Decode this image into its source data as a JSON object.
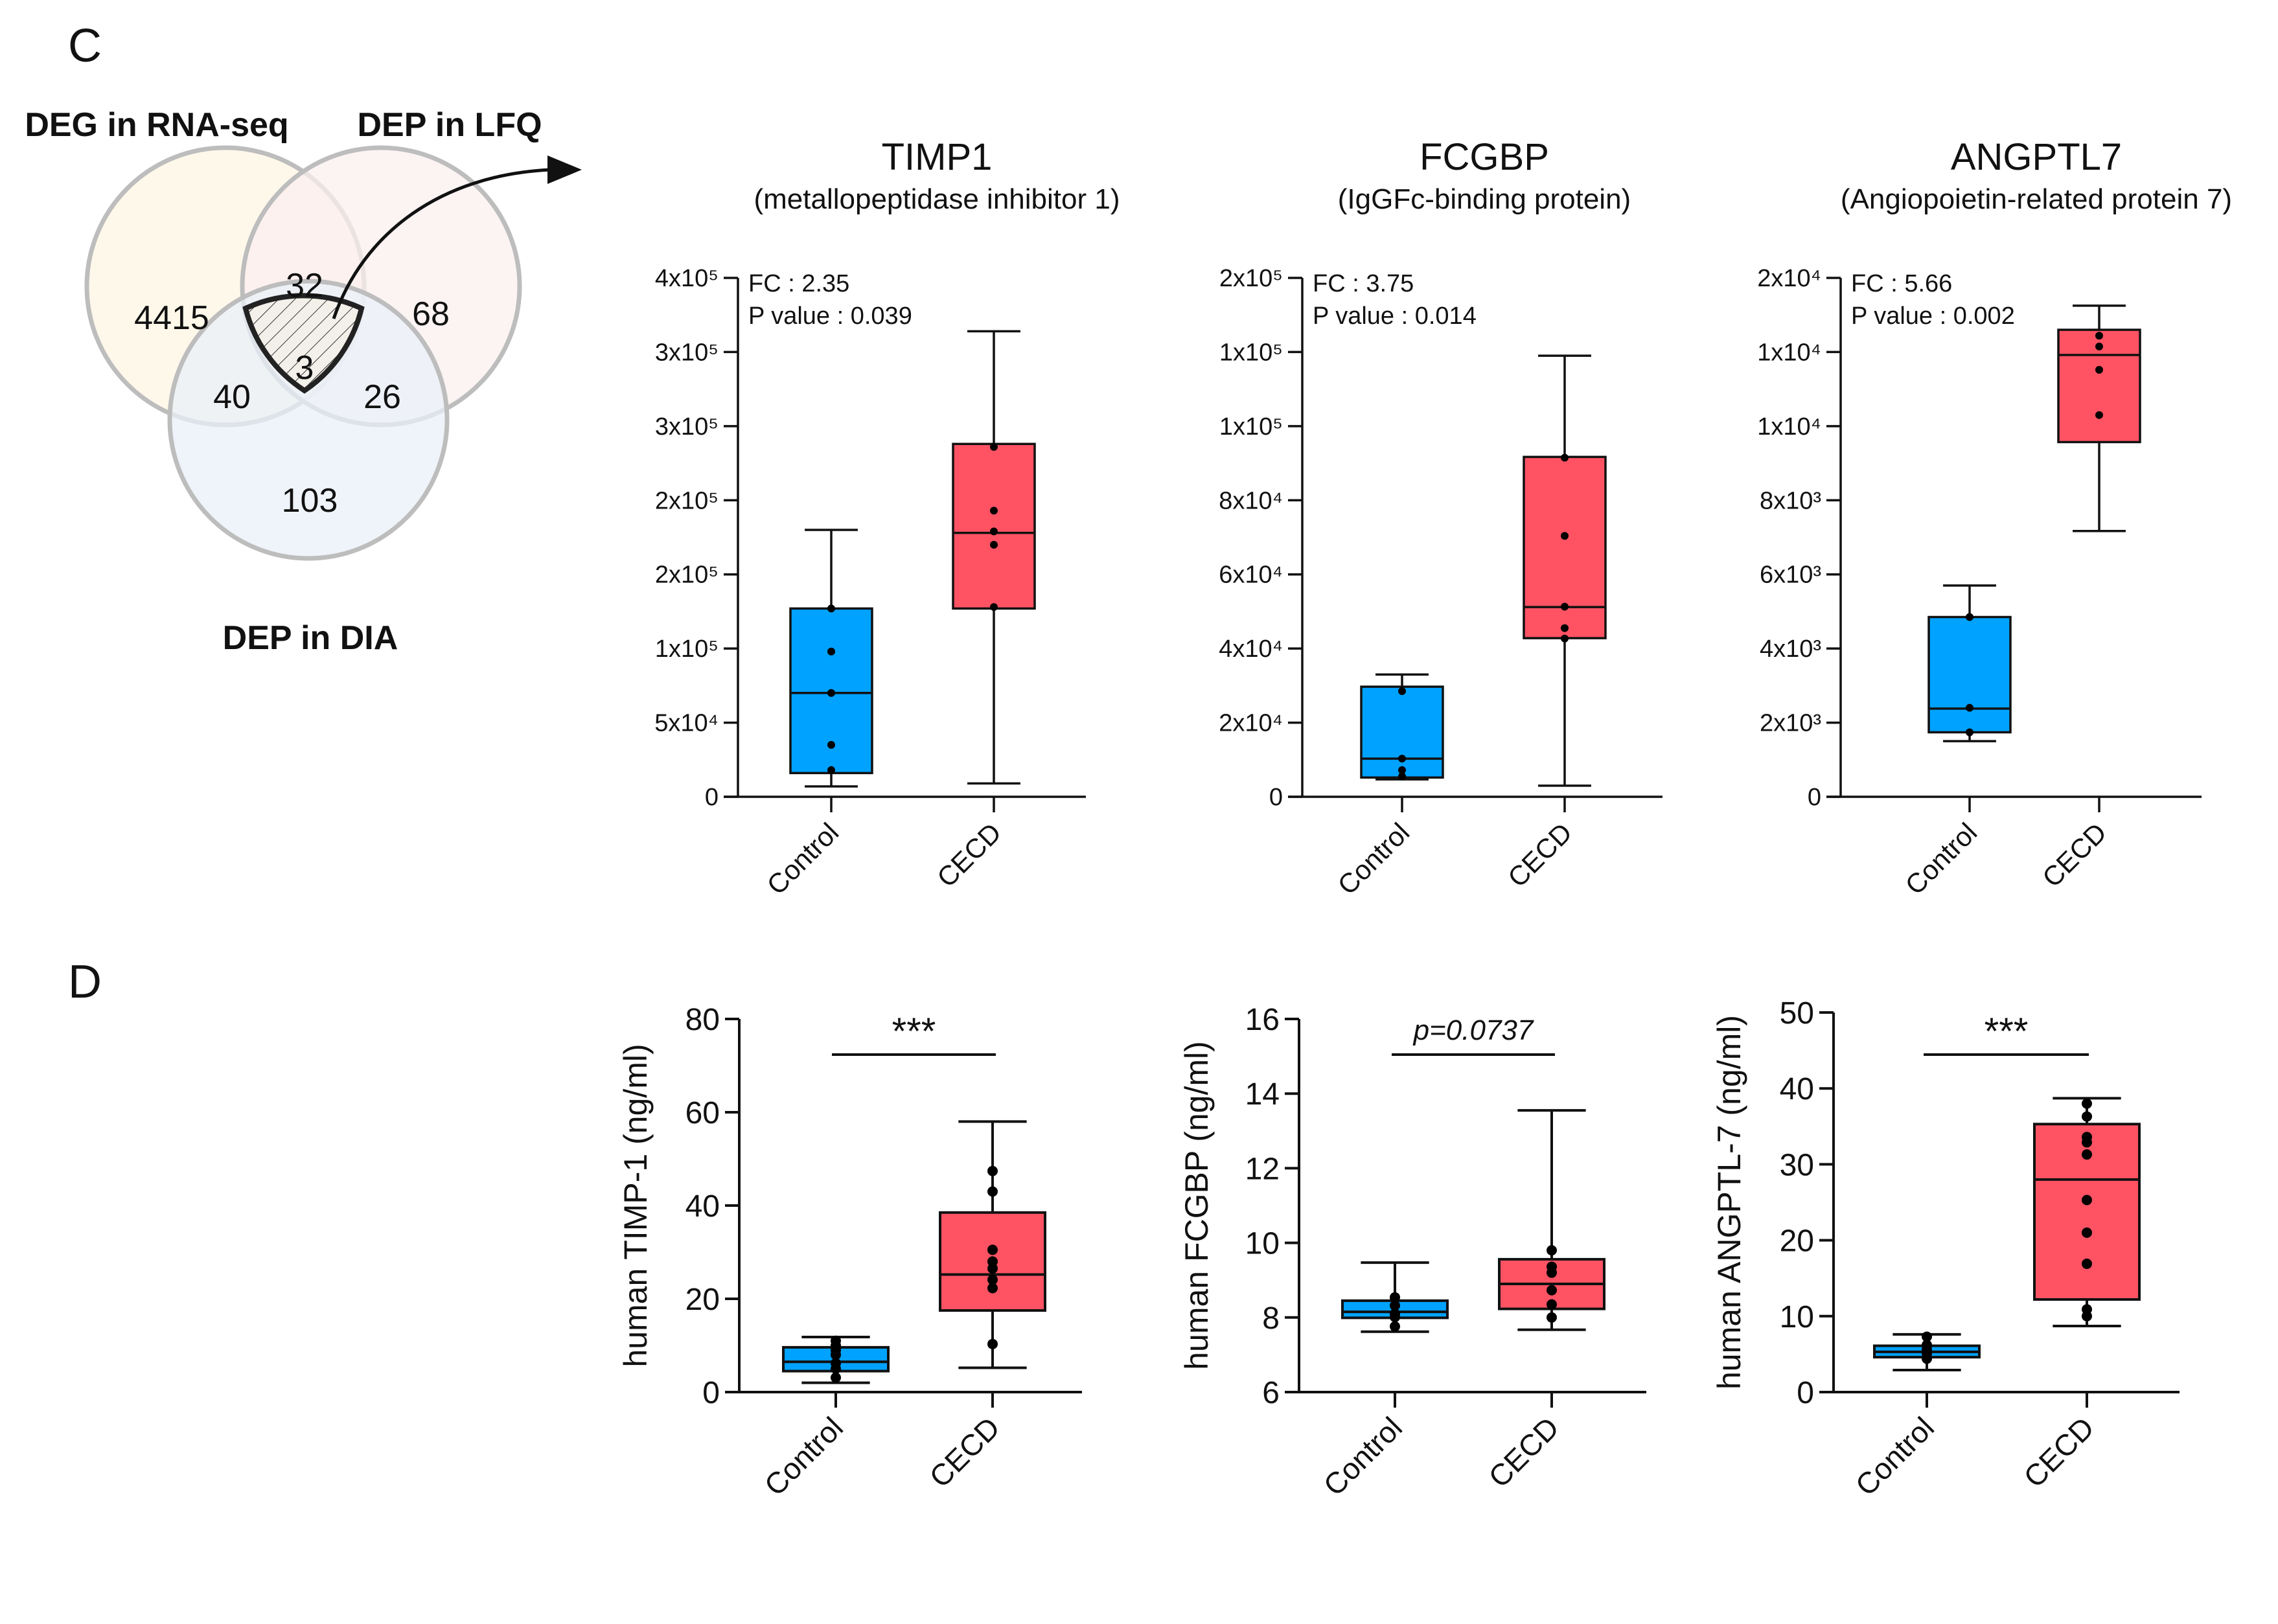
{
  "panels": {
    "c_label": "C",
    "d_label": "D"
  },
  "venn": {
    "sets": [
      "DEG in RNA-seq",
      "DEP in LFQ",
      "DEP in DIA"
    ],
    "regions": {
      "rna_only": "4415",
      "rna_lfq": "32",
      "lfq_only": "68",
      "all_three": "3",
      "rna_dia": "40",
      "lfq_dia": "26",
      "dia_only": "103"
    },
    "colors": {
      "rna": "#FDF6E3",
      "lfq": "#FBEFEF",
      "dia": "#EAF0F8",
      "stroke": "#BDBDBD"
    }
  },
  "colors": {
    "control": "#00A2FF",
    "cecd": "#FF5364"
  },
  "chart_data": [
    {
      "type": "box",
      "id": "c-timp1",
      "title": "TIMP1",
      "subtitle": "(metallopeptidase inhibitor 1)",
      "fc_text": "FC : 2.35",
      "p_text": "P value : 0.039",
      "ylim": [
        0,
        350000
      ],
      "yticks": [
        0,
        50000,
        100000,
        150000,
        200000,
        250000,
        300000,
        350000
      ],
      "ytick_labels": [
        "0",
        "5x10⁴",
        "1x10⁵",
        "2x10⁵",
        "2x10⁵",
        "3x10⁵",
        "3x10⁵",
        "4x10⁵"
      ],
      "categories": [
        "Control",
        "CECD"
      ],
      "groups": [
        {
          "name": "Control",
          "min": 7000,
          "q1": 16000,
          "median": 70000,
          "q3": 127000,
          "max": 180000,
          "points": [
            127000,
            98000,
            70000,
            35000,
            18000
          ]
        },
        {
          "name": "CECD",
          "min": 9000,
          "q1": 127000,
          "median": 178000,
          "q3": 238000,
          "max": 314000,
          "points": [
            236000,
            193000,
            179000,
            170000,
            128000
          ]
        }
      ]
    },
    {
      "type": "box",
      "id": "c-fcgbp",
      "title": "FCGBP",
      "subtitle": "(IgGFc-binding protein)",
      "fc_text": "FC : 3.75",
      "p_text": "P value : 0.014",
      "ylim": [
        0,
        140000
      ],
      "yticks": [
        0,
        20000,
        40000,
        60000,
        80000,
        100000,
        120000,
        140000
      ],
      "ytick_labels": [
        "0",
        "2x10⁴",
        "4x10⁴",
        "6x10⁴",
        "8x10⁴",
        "1x10⁵",
        "1x10⁵",
        "2x10⁵"
      ],
      "categories": [
        "Control",
        "CECD"
      ],
      "groups": [
        {
          "name": "Control",
          "min": 4700,
          "q1": 5200,
          "median": 10300,
          "q3": 29700,
          "max": 33000,
          "points": [
            28500,
            10300,
            7200,
            5500
          ]
        },
        {
          "name": "CECD",
          "min": 3000,
          "q1": 42800,
          "median": 51200,
          "q3": 91700,
          "max": 119000,
          "points": [
            91500,
            70400,
            51300,
            45500,
            42700
          ]
        }
      ]
    },
    {
      "type": "box",
      "id": "c-angptl7",
      "title": "ANGPTL7",
      "subtitle": "(Angiopoietin-related protein 7)",
      "fc_text": "FC : 5.66",
      "p_text": "P value : 0.002",
      "ylim": [
        0,
        14000
      ],
      "yticks": [
        0,
        2000,
        4000,
        6000,
        8000,
        10000,
        12000,
        14000
      ],
      "ytick_labels": [
        "0",
        "2x10³",
        "4x10³",
        "6x10³",
        "8x10³",
        "1x10⁴",
        "1x10⁴",
        "2x10⁴"
      ],
      "categories": [
        "Control",
        "CECD"
      ],
      "groups": [
        {
          "name": "Control",
          "min": 1500,
          "q1": 1740,
          "median": 2380,
          "q3": 4850,
          "max": 5700,
          "points": [
            4850,
            2400,
            1740
          ]
        },
        {
          "name": "CECD",
          "min": 7170,
          "q1": 9570,
          "median": 11920,
          "q3": 12600,
          "max": 13250,
          "points": [
            12440,
            12150,
            11520,
            10300
          ]
        }
      ]
    },
    {
      "type": "box",
      "id": "d-timp1",
      "ylabel": "human TIMP-1 (ng/ml)",
      "significance": "***",
      "ylim": [
        0,
        80
      ],
      "yticks": [
        0,
        20,
        40,
        60,
        80
      ],
      "ytick_labels": [
        "0",
        "20",
        "40",
        "60",
        "80"
      ],
      "categories": [
        "Control",
        "CECD"
      ],
      "groups": [
        {
          "name": "Control",
          "min": 2.0,
          "q1": 4.5,
          "median": 6.5,
          "q3": 9.6,
          "max": 11.8,
          "points": [
            11.0,
            10.0,
            9.0,
            8.0,
            6.2,
            5.0,
            3.1
          ]
        },
        {
          "name": "CECD",
          "min": 5.2,
          "q1": 17.5,
          "median": 25.2,
          "q3": 38.5,
          "max": 58.0,
          "points": [
            47.4,
            43.0,
            30.5,
            28.0,
            26.5,
            24.1,
            22.3,
            10.3
          ]
        }
      ]
    },
    {
      "type": "box",
      "id": "d-fcgbp",
      "ylabel": "human FCGBP (ng/ml)",
      "significance": "p=0.0737",
      "ylim": [
        6,
        16
      ],
      "yticks": [
        6,
        8,
        10,
        12,
        14,
        16
      ],
      "ytick_labels": [
        "6",
        "8",
        "10",
        "12",
        "14",
        "16"
      ],
      "categories": [
        "Control",
        "CECD"
      ],
      "groups": [
        {
          "name": "Control",
          "min": 7.62,
          "q1": 7.99,
          "median": 8.15,
          "q3": 8.45,
          "max": 9.47,
          "points": [
            8.54,
            8.32,
            8.1,
            8.01,
            7.76
          ]
        },
        {
          "name": "CECD",
          "min": 7.67,
          "q1": 8.23,
          "median": 8.9,
          "q3": 9.56,
          "max": 13.55,
          "points": [
            9.8,
            9.36,
            9.2,
            8.73,
            8.35,
            8.0
          ]
        }
      ]
    },
    {
      "type": "box",
      "id": "d-angptl7",
      "ylabel": "human ANGPTL-7 (ng/ml)",
      "significance": "***",
      "ylim": [
        0,
        50
      ],
      "yticks": [
        0,
        10,
        20,
        30,
        40,
        50
      ],
      "ytick_labels": [
        "0",
        "10",
        "20",
        "30",
        "40",
        "50"
      ],
      "categories": [
        "Control",
        "CECD"
      ],
      "groups": [
        {
          "name": "Control",
          "min": 2.9,
          "q1": 4.6,
          "median": 5.3,
          "q3": 6.1,
          "max": 7.6,
          "points": [
            7.3,
            6.2,
            5.6,
            5.1,
            4.4
          ]
        },
        {
          "name": "CECD",
          "min": 8.7,
          "q1": 12.2,
          "median": 28.0,
          "q3": 35.3,
          "max": 38.7,
          "points": [
            38.0,
            36.3,
            33.6,
            32.9,
            31.3,
            25.3,
            21.0,
            16.9,
            10.9,
            10.0
          ]
        }
      ]
    }
  ]
}
